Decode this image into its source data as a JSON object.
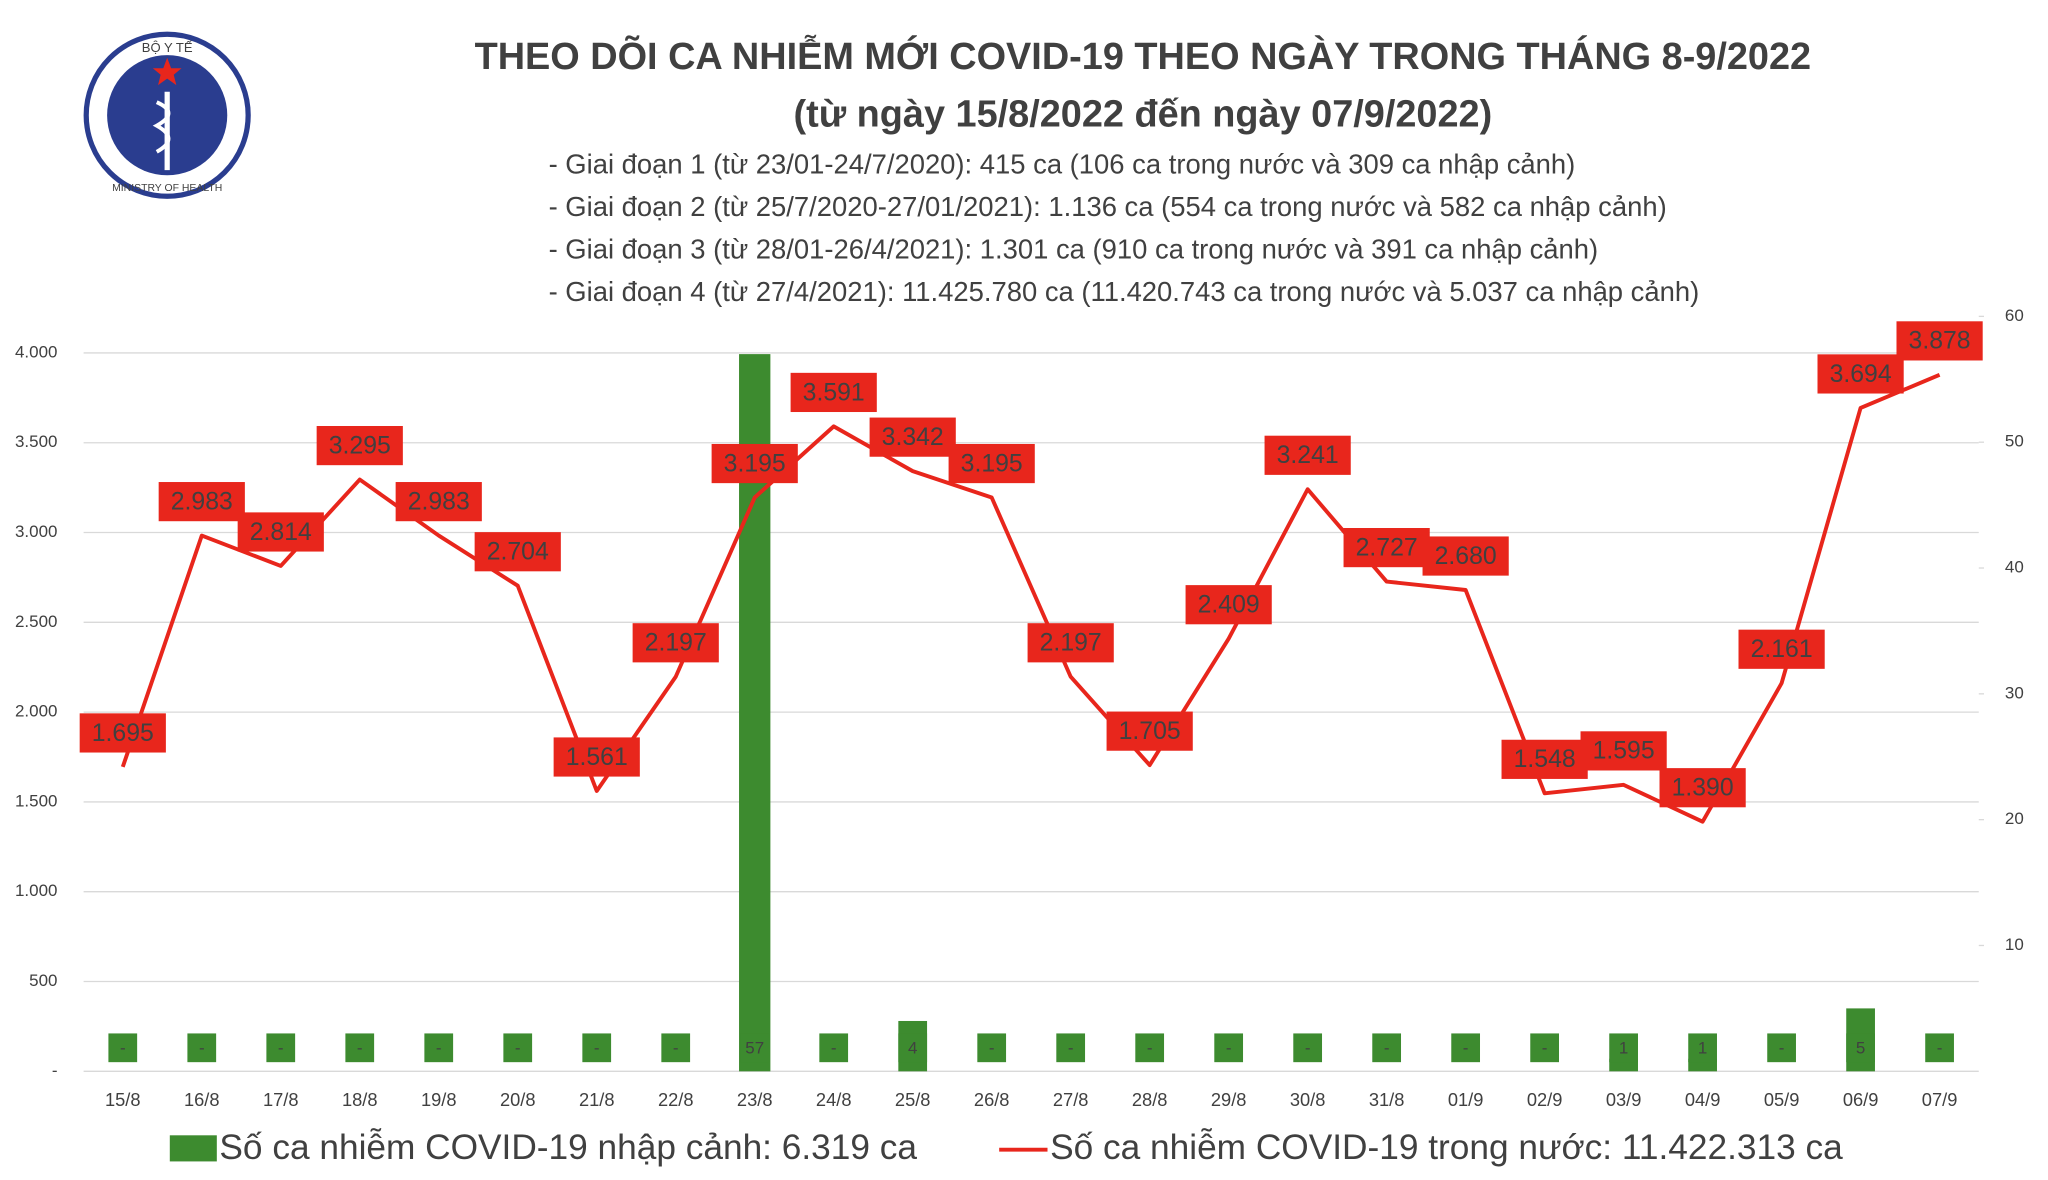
{
  "logo": {
    "top": "BỘ Y TẾ",
    "bottom": "MINISTRY OF HEALTH"
  },
  "chart_data": {
    "type": "combo",
    "title": "THEO DÕI CA NHIỄM MỚI COVID-19 THEO NGÀY TRONG THÁNG 8-9/2022",
    "subtitle": "(từ ngày 15/8/2022 đến ngày 07/9/2022)",
    "annotations": [
      "- Giai đoạn 1 (từ 23/01-24/7/2020): 415 ca (106 ca trong nước và 309 ca nhập cảnh)",
      "- Giai đoạn 2 (từ 25/7/2020-27/01/2021): 1.136 ca (554 ca trong nước và 582 ca nhập cảnh)",
      "- Giai đoạn 3 (từ 28/01-26/4/2021): 1.301 ca (910 ca trong nước và 391 ca nhập cảnh)",
      "- Giai đoạn 4 (từ 27/4/2021): 11.425.780 ca (11.420.743 ca trong nước và 5.037 ca nhập cảnh)"
    ],
    "categories": [
      "15/8",
      "16/8",
      "17/8",
      "18/8",
      "19/8",
      "20/8",
      "21/8",
      "22/8",
      "23/8",
      "24/8",
      "25/8",
      "26/8",
      "27/8",
      "28/8",
      "29/8",
      "30/8",
      "31/8",
      "01/9",
      "02/9",
      "03/9",
      "04/9",
      "05/9",
      "06/9",
      "07/9"
    ],
    "series": [
      {
        "name": "Số ca nhiễm COVID-19 nhập cảnh: 6.319 ca",
        "type": "bar",
        "axis": "y2",
        "color": "#3d8b2f",
        "values": [
          0,
          0,
          0,
          0,
          0,
          0,
          0,
          0,
          57,
          0,
          4,
          0,
          0,
          0,
          0,
          0,
          0,
          0,
          0,
          1,
          1,
          0,
          5,
          0
        ],
        "value_labels": [
          "-",
          "-",
          "-",
          "-",
          "-",
          "-",
          "-",
          "-",
          "57",
          "-",
          "4",
          "-",
          "-",
          "-",
          "-",
          "-",
          "-",
          "-",
          "-",
          "1",
          "1",
          "-",
          "5",
          "-"
        ]
      },
      {
        "name": "Số ca nhiễm COVID-19 trong nước: 11.422.313 ca",
        "type": "line",
        "color": "#e8261c",
        "values": [
          1695,
          2983,
          2814,
          3295,
          2983,
          2704,
          1561,
          2197,
          3195,
          3591,
          3342,
          3195,
          2197,
          1705,
          2409,
          3241,
          2727,
          2680,
          1548,
          1595,
          1390,
          2161,
          3694,
          3878
        ],
        "value_labels": [
          "1.695",
          "2.983",
          "2.814",
          "3.295",
          "2.983",
          "2.704",
          "1.561",
          "2.197",
          "3.195",
          "3.591",
          "3.342",
          "3.195",
          "2.197",
          "1.705",
          "2.409",
          "3.241",
          "2.727",
          "2.680",
          "1.548",
          "1.595",
          "1.390",
          "2.161",
          "3.694",
          "3.878"
        ]
      }
    ],
    "ylim": [
      0,
      4000
    ],
    "yticks": [
      {
        "value": 0,
        "label": "-"
      },
      500,
      {
        "value": 1000,
        "label": "1.000"
      },
      {
        "value": 1500,
        "label": "1.500"
      },
      {
        "value": 2000,
        "label": "2.000"
      },
      {
        "value": 2500,
        "label": "2.500"
      },
      {
        "value": 3000,
        "label": "3.000"
      },
      {
        "value": 3500,
        "label": "3.500"
      },
      {
        "value": 4000,
        "label": "4.000"
      }
    ],
    "y2lim": [
      0,
      60
    ],
    "y2ticks": [
      10,
      20,
      30,
      40,
      50,
      60
    ],
    "grid": true
  }
}
